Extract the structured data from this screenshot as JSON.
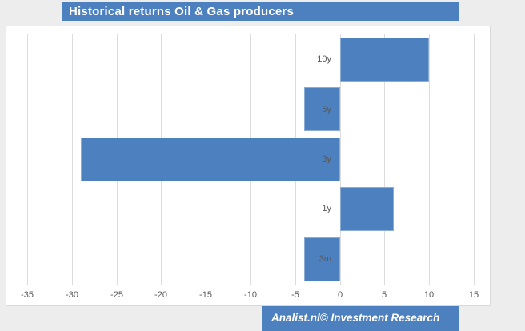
{
  "title": {
    "text": "Historical returns Oil & Gas producers",
    "bg": "#4d80be",
    "color": "#ffffff"
  },
  "footer": {
    "text": "Analist.nl© Investment Research",
    "bg": "#4d80be",
    "color": "#ffffff"
  },
  "colors": {
    "accent_blue": "#4d80be",
    "gridline": "#dcdcdc",
    "axis_label": "#595959",
    "panel_bg": "#ffffff",
    "page_bg": "#ededed"
  },
  "chart_data": {
    "type": "bar",
    "orientation": "horizontal",
    "title": "Historical returns Oil & Gas producers",
    "categories": [
      "10y",
      "5y",
      "3y",
      "1y",
      "3m"
    ],
    "values": [
      10,
      -4,
      -29,
      6,
      -4
    ],
    "xlabel": "",
    "ylabel": "",
    "xlim": [
      -35,
      15
    ],
    "xticks": [
      -35,
      -30,
      -25,
      -20,
      -15,
      -10,
      -5,
      0,
      5,
      10,
      15
    ],
    "grid": true,
    "legend": "none",
    "bar_color": "#4d80be"
  }
}
